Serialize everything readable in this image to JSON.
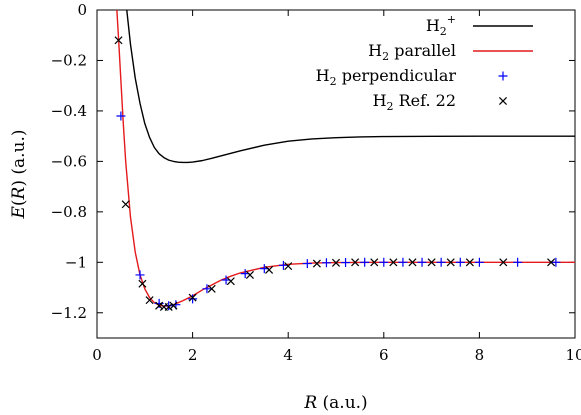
{
  "chart_data": {
    "type": "line",
    "xlabel": "R (a.u.)",
    "ylabel": "E(R) (a.u.)",
    "xlim": [
      0,
      10
    ],
    "ylim": [
      -1.3,
      0
    ],
    "xticks": [
      0,
      2,
      4,
      6,
      8,
      10
    ],
    "yticks": [
      0,
      -0.2,
      -0.4,
      -0.6,
      -0.8,
      -1,
      -1.2
    ],
    "xtick_labels": [
      "0",
      "2",
      "4",
      "6",
      "8",
      "10"
    ],
    "ytick_labels": [
      "0",
      "−0.2",
      "−0.4",
      "−0.6",
      "−0.8",
      "−1",
      "−1.2"
    ],
    "grid": false,
    "legend_position": "top-right",
    "series": [
      {
        "name": "H2+",
        "name_base": "H",
        "name_sub": "2",
        "name_sup": "+",
        "name_rest": "",
        "kind": "line",
        "color": "#000000",
        "x": [
          0.6,
          0.7,
          0.8,
          0.9,
          1.0,
          1.1,
          1.2,
          1.3,
          1.4,
          1.5,
          1.6,
          1.7,
          1.8,
          1.9,
          2.0,
          2.2,
          2.4,
          2.6,
          2.8,
          3.0,
          3.5,
          4.0,
          4.5,
          5.0,
          5.5,
          6.0,
          7.0,
          8.0,
          9.0,
          10.0
        ],
        "y": [
          0.04,
          -0.135,
          -0.27,
          -0.37,
          -0.45,
          -0.505,
          -0.545,
          -0.57,
          -0.585,
          -0.595,
          -0.6,
          -0.603,
          -0.604,
          -0.604,
          -0.6025,
          -0.597,
          -0.588,
          -0.578,
          -0.568,
          -0.558,
          -0.536,
          -0.52,
          -0.511,
          -0.506,
          -0.503,
          -0.5015,
          -0.5005,
          -0.5002,
          -0.5001,
          -0.5
        ]
      },
      {
        "name": "H2 parallel",
        "name_base": "H",
        "name_sub": "2",
        "name_sup": "",
        "name_rest": " parallel",
        "kind": "line",
        "color": "#e41a1c",
        "x": [
          0.4,
          0.45,
          0.5,
          0.55,
          0.6,
          0.7,
          0.8,
          0.9,
          1.0,
          1.1,
          1.2,
          1.3,
          1.4,
          1.5,
          1.6,
          1.8,
          2.0,
          2.2,
          2.4,
          2.6,
          2.8,
          3.0,
          3.5,
          4.0,
          4.5,
          5.0,
          6.0,
          7.0,
          8.0,
          10.0
        ],
        "y": [
          0.05,
          -0.11,
          -0.28,
          -0.45,
          -0.6,
          -0.82,
          -0.96,
          -1.05,
          -1.105,
          -1.14,
          -1.16,
          -1.17,
          -1.174,
          -1.173,
          -1.168,
          -1.152,
          -1.133,
          -1.11,
          -1.09,
          -1.07,
          -1.055,
          -1.042,
          -1.02,
          -1.008,
          -1.003,
          -1.001,
          -1.0,
          -1.0,
          -1.0,
          -1.0
        ]
      },
      {
        "name": "H2 perpendicular",
        "name_base": "H",
        "name_sub": "2",
        "name_sup": "",
        "name_rest": " perpendicular",
        "kind": "plus",
        "color": "#0000ff",
        "x": [
          0.5,
          0.9,
          1.3,
          1.5,
          1.65,
          2.0,
          2.3,
          2.7,
          3.1,
          3.5,
          3.9,
          4.4,
          4.8,
          5.2,
          5.6,
          6.0,
          6.4,
          6.8,
          7.2,
          7.6,
          8.0,
          8.8,
          9.6
        ],
        "y": [
          -0.42,
          -1.05,
          -1.163,
          -1.172,
          -1.168,
          -1.145,
          -1.105,
          -1.07,
          -1.045,
          -1.025,
          -1.012,
          -1.005,
          -1.002,
          -1.001,
          -1.0,
          -1.0,
          -1.0,
          -1.0,
          -1.0,
          -1.0,
          -1.0,
          -1.0,
          -1.0
        ]
      },
      {
        "name": "H2 Ref. 22",
        "name_base": "H",
        "name_sub": "2",
        "name_sup": "",
        "name_rest": " Ref. 22",
        "kind": "cross",
        "color": "#000000",
        "x": [
          0.45,
          0.6,
          0.95,
          1.1,
          1.3,
          1.4,
          1.5,
          1.6,
          2.0,
          2.4,
          2.8,
          3.2,
          3.6,
          4.0,
          4.6,
          5.0,
          5.4,
          5.8,
          6.2,
          6.6,
          7.0,
          7.4,
          7.8,
          8.5,
          9.5
        ],
        "y": [
          -0.12,
          -0.77,
          -1.085,
          -1.15,
          -1.172,
          -1.177,
          -1.177,
          -1.172,
          -1.14,
          -1.105,
          -1.075,
          -1.05,
          -1.03,
          -1.015,
          -1.005,
          -1.002,
          -1.0,
          -1.0,
          -1.0,
          -1.0,
          -1.0,
          -1.0,
          -1.0,
          -1.0,
          -1.0
        ]
      }
    ]
  }
}
